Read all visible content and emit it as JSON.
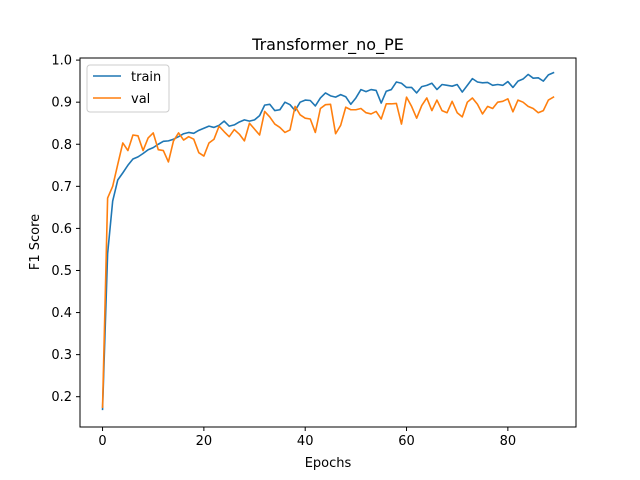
{
  "chart_data": {
    "type": "line",
    "title": "Transformer_no_PE",
    "xlabel": "Epochs",
    "ylabel": "F1 Score",
    "xlim": [
      -4.45,
      93.45
    ],
    "ylim": [
      0.128,
      1.005
    ],
    "xticks": [
      0,
      20,
      40,
      60,
      80
    ],
    "yticks": [
      0.2,
      0.3,
      0.4,
      0.5,
      0.6,
      0.7,
      0.8,
      0.9,
      1.0
    ],
    "ytick_labels": [
      "0.2",
      "0.3",
      "0.4",
      "0.5",
      "0.6",
      "0.7",
      "0.8",
      "0.9",
      "1.0"
    ],
    "grid": false,
    "legend_position": "top-left",
    "series": [
      {
        "name": "train",
        "color": "#1f77b4",
        "values": [
          0.17,
          0.54,
          0.665,
          0.715,
          0.732,
          0.75,
          0.765,
          0.77,
          0.778,
          0.787,
          0.792,
          0.8,
          0.807,
          0.808,
          0.812,
          0.818,
          0.825,
          0.828,
          0.826,
          0.833,
          0.838,
          0.843,
          0.84,
          0.845,
          0.855,
          0.843,
          0.846,
          0.853,
          0.858,
          0.855,
          0.858,
          0.868,
          0.893,
          0.895,
          0.88,
          0.882,
          0.9,
          0.894,
          0.88,
          0.9,
          0.905,
          0.904,
          0.891,
          0.91,
          0.922,
          0.915,
          0.912,
          0.918,
          0.913,
          0.895,
          0.91,
          0.93,
          0.925,
          0.93,
          0.928,
          0.898,
          0.926,
          0.93,
          0.948,
          0.945,
          0.935,
          0.935,
          0.922,
          0.937,
          0.94,
          0.945,
          0.93,
          0.942,
          0.94,
          0.938,
          0.942,
          0.924,
          0.94,
          0.956,
          0.948,
          0.946,
          0.947,
          0.94,
          0.942,
          0.94,
          0.949,
          0.935,
          0.95,
          0.955,
          0.966,
          0.957,
          0.958,
          0.95,
          0.965,
          0.97
        ]
      },
      {
        "name": "val",
        "color": "#ff7f0e",
        "values": [
          0.175,
          0.672,
          0.7,
          0.752,
          0.803,
          0.785,
          0.822,
          0.82,
          0.785,
          0.815,
          0.827,
          0.787,
          0.785,
          0.758,
          0.808,
          0.827,
          0.81,
          0.818,
          0.812,
          0.78,
          0.772,
          0.803,
          0.812,
          0.843,
          0.83,
          0.818,
          0.835,
          0.824,
          0.808,
          0.85,
          0.836,
          0.822,
          0.878,
          0.865,
          0.848,
          0.84,
          0.828,
          0.834,
          0.89,
          0.87,
          0.862,
          0.86,
          0.828,
          0.885,
          0.894,
          0.895,
          0.825,
          0.845,
          0.888,
          0.882,
          0.882,
          0.885,
          0.875,
          0.872,
          0.878,
          0.86,
          0.896,
          0.896,
          0.897,
          0.848,
          0.912,
          0.89,
          0.862,
          0.892,
          0.91,
          0.88,
          0.905,
          0.88,
          0.875,
          0.902,
          0.875,
          0.865,
          0.9,
          0.91,
          0.895,
          0.872,
          0.89,
          0.885,
          0.9,
          0.902,
          0.908,
          0.877,
          0.905,
          0.9,
          0.89,
          0.885,
          0.875,
          0.88,
          0.905,
          0.912
        ]
      }
    ]
  }
}
